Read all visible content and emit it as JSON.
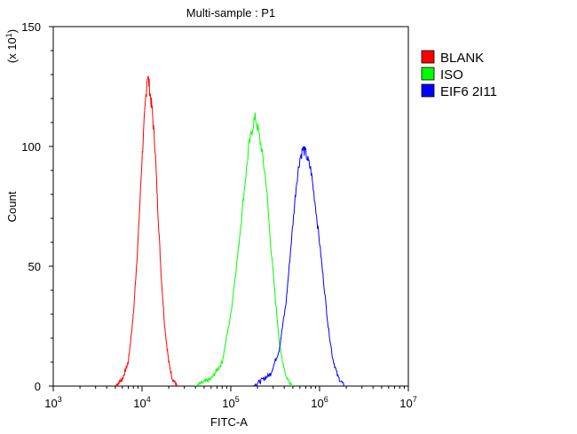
{
  "chart_data": {
    "type": "line",
    "title": "Multi-sample : P1",
    "xlabel": "FITC-A",
    "ylabel": "Count",
    "y_multiplier": "(x 10",
    "y_multiplier_exp": "1",
    "y_multiplier_close": ")",
    "x_scale": "log",
    "xlim": [
      1000,
      10000000
    ],
    "ylim": [
      0,
      150
    ],
    "x_ticks": [
      {
        "value": 1000,
        "base": "10",
        "exp": "3"
      },
      {
        "value": 10000,
        "base": "10",
        "exp": "4"
      },
      {
        "value": 100000,
        "base": "10",
        "exp": "5"
      },
      {
        "value": 1000000,
        "base": "10",
        "exp": "6"
      },
      {
        "value": 10000000,
        "base": "10",
        "exp": "7"
      }
    ],
    "y_ticks": [
      {
        "value": 0,
        "label": "0"
      },
      {
        "value": 50,
        "label": "50"
      },
      {
        "value": 100,
        "label": "100"
      },
      {
        "value": 150,
        "label": "150"
      }
    ],
    "legend_position": "right",
    "series": [
      {
        "name": "BLANK",
        "color": "#ff0000",
        "peak_x": 11500,
        "peak_y": 130,
        "x": [
          5000,
          6000,
          7000,
          8000,
          9000,
          10000,
          11000,
          11500,
          12000,
          13000,
          14000,
          15000,
          16500,
          18000,
          20000,
          22000,
          25000
        ],
        "y": [
          0,
          3,
          10,
          30,
          60,
          95,
          120,
          130,
          126,
          115,
          100,
          75,
          45,
          25,
          10,
          3,
          0
        ]
      },
      {
        "name": "ISO",
        "color": "#00ff00",
        "peak_x": 190000,
        "peak_y": 112,
        "x": [
          40000,
          60000,
          80000,
          100000,
          120000,
          140000,
          160000,
          180000,
          190000,
          200000,
          220000,
          250000,
          280000,
          320000,
          360000,
          420000,
          500000
        ],
        "y": [
          0,
          3,
          10,
          30,
          55,
          80,
          100,
          110,
          112,
          108,
          100,
          85,
          60,
          35,
          15,
          4,
          0
        ]
      },
      {
        "name": "EIF6  2I11",
        "color": "#0000ff",
        "peak_x": 650000,
        "peak_y": 99,
        "x": [
          180000,
          280000,
          350000,
          420000,
          480000,
          550000,
          600000,
          650000,
          700000,
          800000,
          900000,
          1000000,
          1100000,
          1250000,
          1400000,
          1600000,
          1900000
        ],
        "y": [
          0,
          5,
          15,
          35,
          60,
          85,
          95,
          99,
          97,
          90,
          75,
          60,
          45,
          25,
          12,
          4,
          0
        ]
      }
    ]
  }
}
